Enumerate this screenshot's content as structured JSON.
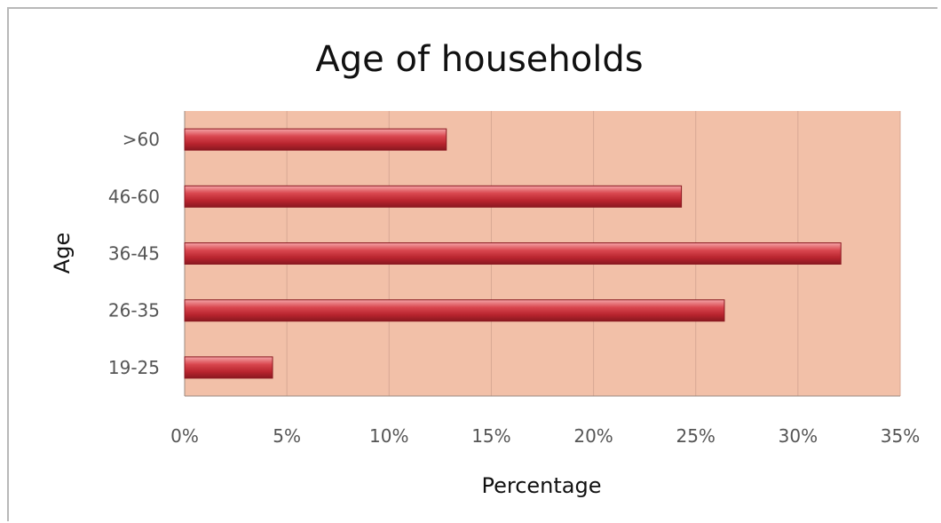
{
  "chart_data": {
    "type": "bar",
    "orientation": "horizontal",
    "title": "Age of households",
    "xlabel": "Percentage",
    "ylabel": "Age",
    "categories": [
      "19-25",
      "26-35",
      "36-45",
      "46-60",
      ">60"
    ],
    "values": [
      4.3,
      26.4,
      32.1,
      24.3,
      12.8
    ],
    "xlim": [
      0,
      35
    ],
    "xticks": [
      "0%",
      "5%",
      "10%",
      "15%",
      "20%",
      "25%",
      "30%",
      "35%"
    ],
    "grid": "vertical",
    "legend": "none",
    "colors": {
      "bar": "#c8323c",
      "bar_light": "#ee8a8e",
      "plot_background": "#f2c0a8"
    }
  }
}
